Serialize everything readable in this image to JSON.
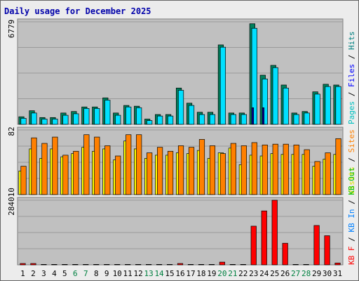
{
  "chart_data": {
    "type": "bar",
    "title": "Daily usage for December 2025",
    "categories": [
      "1",
      "2",
      "3",
      "4",
      "5",
      "6",
      "7",
      "8",
      "9",
      "10",
      "11",
      "12",
      "13",
      "14",
      "15",
      "16",
      "17",
      "18",
      "19",
      "20",
      "21",
      "22",
      "23",
      "24",
      "25",
      "26",
      "27",
      "28",
      "29",
      "30",
      "31"
    ],
    "weekend_days": [
      "6",
      "7",
      "13",
      "14",
      "20",
      "21",
      "27",
      "28"
    ],
    "panels": [
      {
        "id": "hits-files-pages",
        "max_label": "6779",
        "ymax": 6779,
        "side_labels": [
          {
            "text": "Pages",
            "color": "#00c0c0"
          },
          {
            "text": "Files",
            "color": "#0000ff"
          },
          {
            "text": "Hits",
            "color": "#008080"
          }
        ],
        "series": [
          {
            "name": "Hits",
            "color": "#00805c",
            "values": [
              500,
              900,
              450,
              450,
              750,
              850,
              1150,
              1150,
              1750,
              750,
              1250,
              1200,
              350,
              650,
              650,
              2400,
              1400,
              800,
              800,
              5250,
              750,
              750,
              6650,
              3250,
              3900,
              2600,
              750,
              850,
              2150,
              2650,
              2600
            ]
          },
          {
            "name": "Files",
            "color": "#00e0ff",
            "values": [
              400,
              750,
              350,
              350,
              600,
              700,
              1050,
              1050,
              1600,
              600,
              1150,
              1100,
              250,
              550,
              550,
              2250,
              1250,
              650,
              650,
              5100,
              650,
              650,
              6350,
              3000,
              3750,
              2400,
              650,
              750,
              2000,
              2500,
              2500
            ]
          },
          {
            "name": "Pages",
            "color": "#0000a0",
            "values": [
              0,
              0,
              0,
              0,
              0,
              0,
              0,
              0,
              0,
              0,
              0,
              0,
              0,
              0,
              0,
              0,
              0,
              0,
              0,
              0,
              0,
              0,
              1100,
              1100,
              0,
              0,
              0,
              0,
              0,
              0,
              0
            ]
          }
        ]
      },
      {
        "id": "visits-sites",
        "max_label": "82",
        "ymax": 82,
        "side_labels": [
          {
            "text": "Visits",
            "color": "#e0e000"
          },
          {
            "text": "Sites",
            "color": "#ff8000"
          }
        ],
        "series": [
          {
            "name": "Visits",
            "color": "#ffff00",
            "values": [
              30,
              58,
              46,
              58,
              48,
              52,
              60,
              55,
              58,
              44,
              68,
              58,
              46,
              50,
              50,
              53,
              52,
              56,
              46,
              53,
              59,
              38,
              50,
              49,
              52,
              51,
              51,
              51,
              36,
              45,
              51
            ]
          },
          {
            "name": "Sites",
            "color": "#ff8000",
            "values": [
              36,
              72,
              65,
              73,
              50,
              55,
              76,
              73,
              62,
              49,
              76,
              76,
              53,
              60,
              55,
              62,
              60,
              70,
              62,
              52,
              65,
              62,
              66,
              63,
              64,
              64,
              63,
              57,
              42,
              53,
              71
            ]
          }
        ]
      },
      {
        "id": "kbytes",
        "max_label": "284010",
        "ymax": 284010,
        "side_labels": [
          {
            "text": "KB F",
            "color": "#ff0000"
          },
          {
            "text": "KB In",
            "color": "#0080ff"
          },
          {
            "text": "KB Out",
            "color": "#00c000"
          }
        ],
        "series": [
          {
            "name": "KB F",
            "color": "#ff0000",
            "values": [
              6000,
              6000,
              2000,
              2000,
              2000,
              2000,
              2000,
              2000,
              2000,
              2000,
              2000,
              2000,
              2000,
              2000,
              2000,
              6000,
              2000,
              2000,
              2000,
              12000,
              2000,
              2000,
              170000,
              237000,
              284010,
              95000,
              2000,
              2000,
              173000,
              128000,
              8000
            ]
          }
        ]
      }
    ]
  }
}
